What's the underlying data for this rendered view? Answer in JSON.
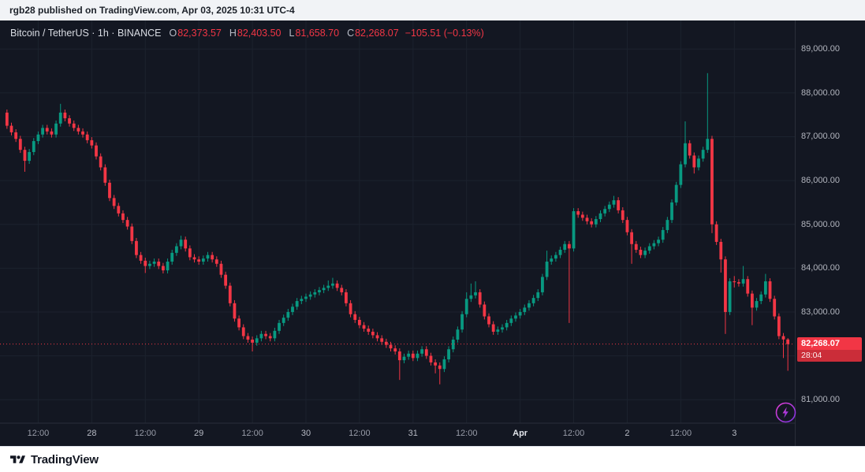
{
  "banner": {
    "text": "rgb28 published on TradingView.com, Apr 03, 2025 10:31 UTC-4"
  },
  "header": {
    "title": "Bitcoin / TetherUS · 1h · BINANCE",
    "ohlc": [
      {
        "label": "O",
        "value": "82,373.57"
      },
      {
        "label": "H",
        "value": "82,403.50"
      },
      {
        "label": "L",
        "value": "81,658.70"
      },
      {
        "label": "C",
        "value": "82,268.07"
      }
    ],
    "change": "−105.51 (−0.13%)"
  },
  "price_axis": {
    "labels": [
      {
        "text": "89,000.00",
        "price": 89000
      },
      {
        "text": "88,000.00",
        "price": 88000
      },
      {
        "text": "87,000.00",
        "price": 87000
      },
      {
        "text": "86,000.00",
        "price": 86000
      },
      {
        "text": "85,000.00",
        "price": 85000
      },
      {
        "text": "84,000.00",
        "price": 84000
      },
      {
        "text": "83,000.00",
        "price": 83000
      },
      {
        "text": "81,000.00",
        "price": 81000
      }
    ],
    "last": {
      "text": "82,268.07",
      "countdown": "28:04",
      "price": 82268.07
    }
  },
  "time_axis": {
    "labels": [
      {
        "text": "12:00",
        "i": 7,
        "kind": "time"
      },
      {
        "text": "28",
        "i": 19,
        "kind": "day"
      },
      {
        "text": "12:00",
        "i": 31,
        "kind": "time"
      },
      {
        "text": "29",
        "i": 43,
        "kind": "day"
      },
      {
        "text": "12:00",
        "i": 55,
        "kind": "time"
      },
      {
        "text": "30",
        "i": 67,
        "kind": "day"
      },
      {
        "text": "12:00",
        "i": 79,
        "kind": "time"
      },
      {
        "text": "31",
        "i": 91,
        "kind": "day"
      },
      {
        "text": "12:00",
        "i": 103,
        "kind": "time"
      },
      {
        "text": "Apr",
        "i": 115,
        "kind": "month"
      },
      {
        "text": "12:00",
        "i": 127,
        "kind": "time"
      },
      {
        "text": "2",
        "i": 139,
        "kind": "day"
      },
      {
        "text": "12:00",
        "i": 151,
        "kind": "time"
      },
      {
        "text": "3",
        "i": 163,
        "kind": "day"
      }
    ]
  },
  "footer": {
    "brand": "TradingView"
  },
  "colors": {
    "up": "#089981",
    "down": "#f23645",
    "tag_bg": "#f23645",
    "grid": "#1c222e",
    "border": "#2a2e39",
    "axis_text": "#b2b5be",
    "bg": "#131722",
    "banner_bg": "#f1f3f6",
    "footer_bg": "#ffffff",
    "boost_from": "#e33fd4",
    "boost_to": "#7a33e0"
  },
  "chart_data": {
    "type": "candlestick",
    "interval_label": "1h",
    "price_min": 80500,
    "price_max": 89400,
    "h_grid": [
      81000,
      82000,
      83000,
      84000,
      85000,
      86000,
      87000,
      88000,
      89000
    ],
    "candles": [
      [
        87550,
        87620,
        87180,
        87250
      ],
      [
        87250,
        87320,
        87030,
        87100
      ],
      [
        87100,
        87170,
        86880,
        86950
      ],
      [
        86950,
        87020,
        86630,
        86700
      ],
      [
        86700,
        86770,
        86200,
        86450
      ],
      [
        86450,
        86720,
        86380,
        86650
      ],
      [
        86650,
        86970,
        86580,
        86900
      ],
      [
        86900,
        87120,
        86830,
        87050
      ],
      [
        87050,
        87270,
        86980,
        87200
      ],
      [
        87200,
        87270,
        87050,
        87120
      ],
      [
        87120,
        87190,
        86980,
        87050
      ],
      [
        87050,
        87370,
        86980,
        87300
      ],
      [
        87300,
        87750,
        87230,
        87550
      ],
      [
        87550,
        87620,
        87350,
        87420
      ],
      [
        87420,
        87490,
        87230,
        87300
      ],
      [
        87300,
        87370,
        87130,
        87200
      ],
      [
        87200,
        87270,
        87050,
        87120
      ],
      [
        87120,
        87190,
        86980,
        87050
      ],
      [
        87050,
        87120,
        86850,
        86920
      ],
      [
        86920,
        86990,
        86730,
        86800
      ],
      [
        86800,
        86870,
        86480,
        86550
      ],
      [
        86550,
        86620,
        86230,
        86300
      ],
      [
        86300,
        86370,
        85880,
        85950
      ],
      [
        85950,
        86020,
        85530,
        85600
      ],
      [
        85600,
        85670,
        85350,
        85420
      ],
      [
        85420,
        85490,
        85180,
        85250
      ],
      [
        85250,
        85320,
        85030,
        85100
      ],
      [
        85100,
        85170,
        84880,
        84950
      ],
      [
        84950,
        85020,
        84550,
        84620
      ],
      [
        84620,
        84690,
        84230,
        84300
      ],
      [
        84300,
        84370,
        84100,
        84170
      ],
      [
        84170,
        84240,
        83890,
        84050
      ],
      [
        84050,
        84170,
        83980,
        84100
      ],
      [
        84100,
        84220,
        84030,
        84150
      ],
      [
        84150,
        84220,
        83980,
        84050
      ],
      [
        84050,
        84120,
        83880,
        83950
      ],
      [
        83950,
        84220,
        83880,
        84150
      ],
      [
        84150,
        84420,
        84080,
        84350
      ],
      [
        84350,
        84570,
        84280,
        84500
      ],
      [
        84500,
        84740,
        84430,
        84650
      ],
      [
        84650,
        84720,
        84380,
        84450
      ],
      [
        84450,
        84520,
        84180,
        84250
      ],
      [
        84250,
        84320,
        84130,
        84200
      ],
      [
        84200,
        84270,
        84080,
        84150
      ],
      [
        84150,
        84290,
        84080,
        84220
      ],
      [
        84220,
        84370,
        84150,
        84300
      ],
      [
        84300,
        84370,
        84130,
        84200
      ],
      [
        84200,
        84270,
        84030,
        84100
      ],
      [
        84100,
        84170,
        83780,
        83850
      ],
      [
        83850,
        83920,
        83530,
        83600
      ],
      [
        83600,
        83670,
        83130,
        83200
      ],
      [
        83200,
        83270,
        82780,
        82850
      ],
      [
        82850,
        82920,
        82580,
        82650
      ],
      [
        82650,
        82720,
        82380,
        82450
      ],
      [
        82450,
        82520,
        82300,
        82370
      ],
      [
        82370,
        82440,
        82100,
        82300
      ],
      [
        82300,
        82470,
        82230,
        82400
      ],
      [
        82400,
        82570,
        82330,
        82500
      ],
      [
        82500,
        82570,
        82380,
        82450
      ],
      [
        82450,
        82520,
        82330,
        82400
      ],
      [
        82400,
        82640,
        82330,
        82570
      ],
      [
        82570,
        82820,
        82500,
        82750
      ],
      [
        82750,
        82940,
        82680,
        82870
      ],
      [
        82870,
        83070,
        82800,
        83000
      ],
      [
        83000,
        83190,
        82930,
        83120
      ],
      [
        83120,
        83320,
        83050,
        83250
      ],
      [
        83250,
        83370,
        83180,
        83300
      ],
      [
        83300,
        83420,
        83230,
        83350
      ],
      [
        83350,
        83470,
        83280,
        83400
      ],
      [
        83400,
        83520,
        83330,
        83450
      ],
      [
        83450,
        83570,
        83380,
        83500
      ],
      [
        83500,
        83620,
        83430,
        83550
      ],
      [
        83550,
        83720,
        83480,
        83600
      ],
      [
        83600,
        83780,
        83530,
        83650
      ],
      [
        83650,
        83720,
        83480,
        83550
      ],
      [
        83550,
        83620,
        83380,
        83450
      ],
      [
        83450,
        83520,
        83130,
        83200
      ],
      [
        83200,
        83270,
        82880,
        82950
      ],
      [
        82950,
        83020,
        82750,
        82820
      ],
      [
        82820,
        82890,
        82630,
        82700
      ],
      [
        82700,
        82770,
        82550,
        82620
      ],
      [
        82620,
        82690,
        82480,
        82550
      ],
      [
        82550,
        82620,
        82400,
        82470
      ],
      [
        82470,
        82540,
        82330,
        82400
      ],
      [
        82400,
        82470,
        82250,
        82320
      ],
      [
        82320,
        82390,
        82180,
        82250
      ],
      [
        82250,
        82320,
        82100,
        82170
      ],
      [
        82170,
        82240,
        82030,
        82100
      ],
      [
        82100,
        82170,
        81450,
        81900
      ],
      [
        81900,
        82050,
        81830,
        81980
      ],
      [
        81980,
        82120,
        81910,
        82050
      ],
      [
        82050,
        82120,
        81880,
        81950
      ],
      [
        81950,
        82120,
        81880,
        82050
      ],
      [
        82050,
        82220,
        81980,
        82150
      ],
      [
        82150,
        82220,
        81930,
        82000
      ],
      [
        82000,
        82070,
        81780,
        81850
      ],
      [
        81850,
        81920,
        81600,
        81780
      ],
      [
        81780,
        81850,
        81350,
        81700
      ],
      [
        81700,
        81990,
        81630,
        81920
      ],
      [
        81920,
        82220,
        81850,
        82150
      ],
      [
        82150,
        82440,
        82080,
        82370
      ],
      [
        82370,
        82670,
        82300,
        82600
      ],
      [
        82600,
        83020,
        82530,
        82950
      ],
      [
        82950,
        83450,
        82880,
        83300
      ],
      [
        83300,
        83650,
        83230,
        83380
      ],
      [
        83380,
        83700,
        83310,
        83450
      ],
      [
        83450,
        83520,
        83100,
        83170
      ],
      [
        83170,
        83240,
        82830,
        82900
      ],
      [
        82900,
        82970,
        82650,
        82720
      ],
      [
        82720,
        82790,
        82480,
        82550
      ],
      [
        82550,
        82670,
        82480,
        82600
      ],
      [
        82600,
        82720,
        82530,
        82650
      ],
      [
        82650,
        82820,
        82580,
        82750
      ],
      [
        82750,
        82920,
        82680,
        82850
      ],
      [
        82850,
        82990,
        82780,
        82920
      ],
      [
        82920,
        83070,
        82850,
        83000
      ],
      [
        83000,
        83170,
        82930,
        83100
      ],
      [
        83100,
        83270,
        83030,
        83200
      ],
      [
        83200,
        83390,
        83130,
        83320
      ],
      [
        83320,
        83520,
        83250,
        83450
      ],
      [
        83450,
        83870,
        83380,
        83800
      ],
      [
        83800,
        84400,
        83730,
        84150
      ],
      [
        84150,
        84290,
        84080,
        84220
      ],
      [
        84220,
        84370,
        84150,
        84300
      ],
      [
        84300,
        84490,
        84230,
        84420
      ],
      [
        84420,
        84620,
        84350,
        84550
      ],
      [
        84550,
        84620,
        82750,
        84450
      ],
      [
        84450,
        85370,
        84380,
        85300
      ],
      [
        85300,
        85370,
        85150,
        85220
      ],
      [
        85220,
        85290,
        85080,
        85150
      ],
      [
        85150,
        85220,
        85000,
        85070
      ],
      [
        85070,
        85140,
        84930,
        85000
      ],
      [
        85000,
        85190,
        84930,
        85120
      ],
      [
        85120,
        85320,
        85050,
        85250
      ],
      [
        85250,
        85420,
        85180,
        85350
      ],
      [
        85350,
        85520,
        85280,
        85450
      ],
      [
        85450,
        85650,
        85380,
        85550
      ],
      [
        85550,
        85620,
        85250,
        85320
      ],
      [
        85320,
        85390,
        85030,
        85100
      ],
      [
        85100,
        85170,
        84750,
        84820
      ],
      [
        84820,
        84890,
        84100,
        84550
      ],
      [
        84550,
        84620,
        84350,
        84420
      ],
      [
        84420,
        84490,
        84230,
        84300
      ],
      [
        84300,
        84470,
        84230,
        84400
      ],
      [
        84400,
        84570,
        84330,
        84500
      ],
      [
        84500,
        84640,
        84430,
        84570
      ],
      [
        84570,
        84720,
        84500,
        84650
      ],
      [
        84650,
        84940,
        84580,
        84870
      ],
      [
        84870,
        85170,
        84800,
        85100
      ],
      [
        85100,
        85570,
        85030,
        85500
      ],
      [
        85500,
        85970,
        85430,
        85900
      ],
      [
        85900,
        86440,
        85830,
        86370
      ],
      [
        86370,
        87350,
        86300,
        86850
      ],
      [
        86850,
        86920,
        86500,
        86570
      ],
      [
        86570,
        86640,
        86160,
        86300
      ],
      [
        86300,
        86570,
        86230,
        86500
      ],
      [
        86500,
        86770,
        86430,
        86700
      ],
      [
        86700,
        88450,
        86630,
        86950
      ],
      [
        86950,
        87020,
        84800,
        85000
      ],
      [
        85000,
        85070,
        84530,
        84600
      ],
      [
        84600,
        84670,
        83900,
        84200
      ],
      [
        84200,
        84270,
        82500,
        83000
      ],
      [
        83000,
        83770,
        82930,
        83700
      ],
      [
        83700,
        83820,
        83560,
        83680
      ],
      [
        83680,
        83750,
        83580,
        83650
      ],
      [
        83650,
        84050,
        83580,
        83750
      ],
      [
        83750,
        83820,
        83350,
        83420
      ],
      [
        83420,
        83490,
        82700,
        83100
      ],
      [
        83100,
        83320,
        83030,
        83250
      ],
      [
        83250,
        83470,
        83180,
        83400
      ],
      [
        83400,
        83870,
        83330,
        83700
      ],
      [
        83700,
        83770,
        83230,
        83300
      ],
      [
        83300,
        83370,
        82830,
        82900
      ],
      [
        82900,
        82970,
        82380,
        82450
      ],
      [
        82450,
        82520,
        81950,
        82374
      ],
      [
        82374,
        82404,
        81659,
        82268
      ]
    ]
  }
}
